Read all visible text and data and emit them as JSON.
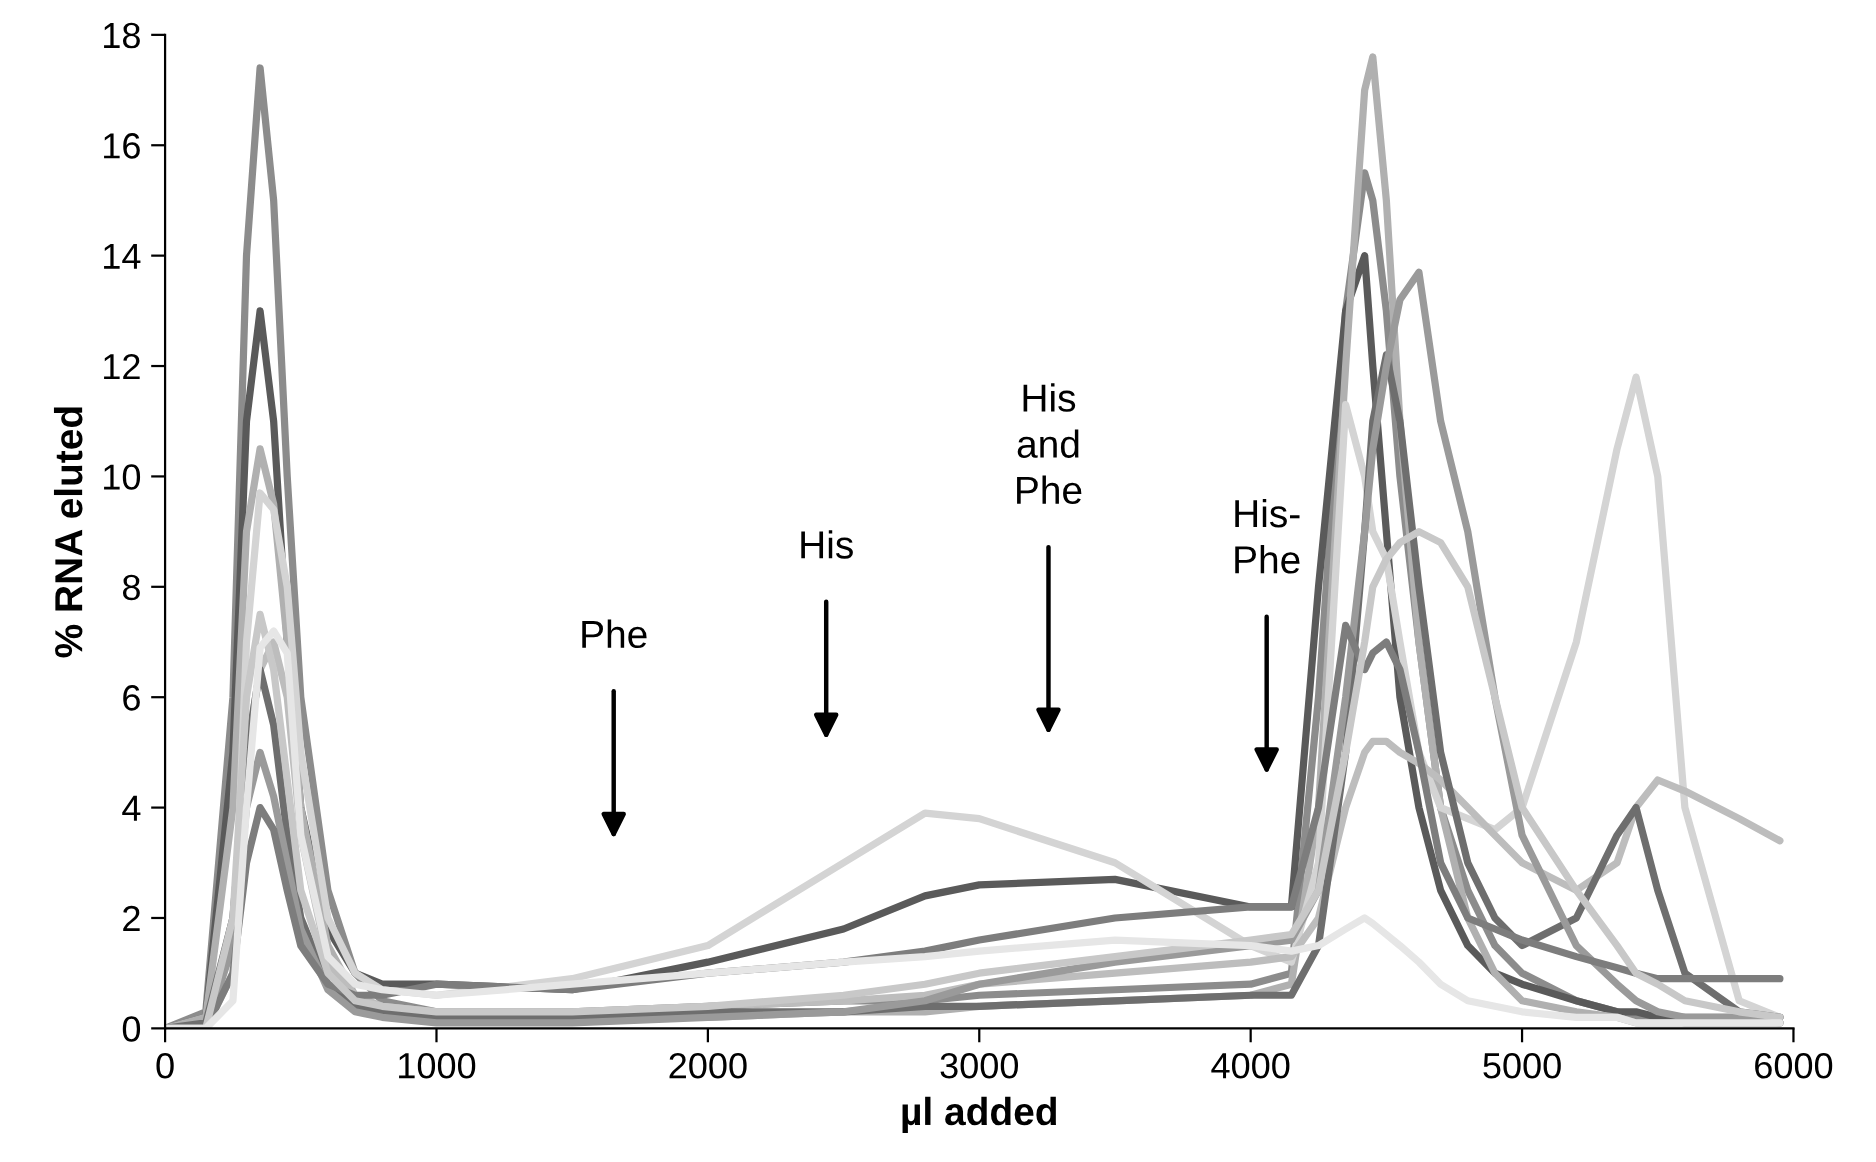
{
  "chart_data": {
    "type": "line",
    "xlabel": "µl added",
    "ylabel": "% RNA eluted",
    "xlim": [
      0,
      6000
    ],
    "ylim": [
      0,
      18
    ],
    "xticks": [
      0,
      1000,
      2000,
      3000,
      4000,
      5000,
      6000
    ],
    "yticks": [
      0,
      2,
      4,
      6,
      8,
      10,
      12,
      14,
      16,
      18
    ],
    "grid": false,
    "legend": false,
    "marker": "none",
    "line_style": "solid",
    "x": [
      0,
      150,
      250,
      300,
      350,
      400,
      450,
      500,
      600,
      700,
      800,
      1000,
      1500,
      2000,
      2500,
      2800,
      3000,
      3500,
      4000,
      4150,
      4250,
      4350,
      4420,
      4450,
      4500,
      4550,
      4620,
      4700,
      4800,
      4900,
      5000,
      5200,
      5350,
      5420,
      5500,
      5600,
      5800,
      5950
    ],
    "annotations": [
      "Phe",
      "His",
      "His\nand\nPhe",
      "His-\nPhe"
    ],
    "series": [
      {
        "color": "#8c8c8c",
        "values": [
          0,
          0.3,
          6,
          14,
          17.4,
          15,
          10,
          6,
          2.5,
          1,
          0.5,
          0.3,
          0.3,
          0.4,
          0.5,
          0.5,
          0.6,
          0.7,
          0.8,
          1,
          6,
          13,
          15.5,
          15,
          13,
          10,
          7,
          4,
          2.5,
          1.5,
          1,
          0.5,
          0.3,
          0.2,
          0.2,
          0.1,
          0.1,
          0.1
        ]
      },
      {
        "color": "#5a5a5a",
        "values": [
          0,
          0.2,
          5,
          11,
          13,
          11,
          7,
          4,
          1.8,
          1,
          0.8,
          0.8,
          0.7,
          1.2,
          1.8,
          2.4,
          2.6,
          2.7,
          2.2,
          2.2,
          8,
          13,
          14,
          12,
          9,
          6,
          4,
          2.5,
          1.5,
          1,
          0.8,
          0.5,
          0.3,
          0.3,
          0.2,
          0.2,
          0.2,
          0.2
        ]
      },
      {
        "color": "#b0b0b0",
        "values": [
          0,
          0.2,
          4,
          9,
          10.5,
          9.5,
          7,
          4,
          1.5,
          0.6,
          0.3,
          0.2,
          0.2,
          0.2,
          0.3,
          0.3,
          0.4,
          0.5,
          0.6,
          0.8,
          4,
          12,
          17,
          17.6,
          15,
          11,
          7,
          4,
          2,
          1,
          0.5,
          0.3,
          0.2,
          0.1,
          0.1,
          0.1,
          0.1,
          0.1
        ]
      },
      {
        "color": "#d4d4d4",
        "values": [
          0,
          0,
          1,
          7,
          9.7,
          9.4,
          8,
          5,
          2,
          1,
          0.7,
          0.6,
          0.9,
          1.5,
          3,
          3.9,
          3.8,
          3,
          1.5,
          1.2,
          3,
          11.3,
          10,
          9,
          8.5,
          7,
          5,
          4,
          3.8,
          3.6,
          4,
          7,
          10.5,
          11.8,
          10,
          4,
          0.5,
          0.2
        ]
      },
      {
        "color": "#bdbdbd",
        "values": [
          0,
          0,
          2,
          5,
          6.5,
          7,
          6,
          3.5,
          1.2,
          0.6,
          0.4,
          0.3,
          0.3,
          0.4,
          0.5,
          0.6,
          0.8,
          1,
          1.2,
          1.3,
          2,
          4,
          5,
          5.2,
          5.2,
          5,
          4.8,
          4.5,
          4,
          3.5,
          3,
          2.5,
          3,
          4,
          4.5,
          4.3,
          3.8,
          3.4
        ]
      },
      {
        "color": "#6e6e6e",
        "values": [
          0,
          0.1,
          2,
          5,
          6.5,
          5.5,
          3.5,
          2,
          0.8,
          0.4,
          0.3,
          0.2,
          0.2,
          0.3,
          0.3,
          0.4,
          0.4,
          0.5,
          0.6,
          0.6,
          1.5,
          5,
          9,
          11,
          12.2,
          11,
          8,
          5,
          3,
          2,
          1.5,
          2,
          3.5,
          4,
          2.5,
          1,
          0.3,
          0.2
        ]
      },
      {
        "color": "#9a9a9a",
        "values": [
          0,
          0,
          1.5,
          4,
          5,
          4.2,
          3,
          1.8,
          0.7,
          0.3,
          0.2,
          0.1,
          0.1,
          0.2,
          0.3,
          0.5,
          0.8,
          1.2,
          1.5,
          1.6,
          2.5,
          6,
          9,
          10.5,
          12,
          13.2,
          13.7,
          11,
          9,
          6,
          3.5,
          1.5,
          0.8,
          0.5,
          0.3,
          0.2,
          0.2,
          0.1
        ]
      },
      {
        "color": "#7d7d7d",
        "values": [
          0,
          0,
          1,
          3,
          4,
          3.6,
          2.5,
          1.5,
          0.8,
          0.6,
          0.6,
          0.8,
          0.7,
          1,
          1.2,
          1.4,
          1.6,
          2,
          2.2,
          2.2,
          4,
          7.3,
          6.5,
          6.8,
          7,
          6.5,
          5,
          3,
          2,
          1.8,
          1.6,
          1.3,
          1.1,
          1,
          0.9,
          0.9,
          0.9,
          0.9
        ]
      },
      {
        "color": "#c8c8c8",
        "values": [
          0,
          0,
          2,
          6,
          7.5,
          6.5,
          4.5,
          2.5,
          1,
          0.5,
          0.4,
          0.3,
          0.3,
          0.4,
          0.6,
          0.8,
          1,
          1.3,
          1.6,
          1.7,
          2.5,
          5,
          7,
          8,
          8.5,
          8.8,
          9,
          8.8,
          8,
          6,
          4,
          2.5,
          1.5,
          1,
          0.8,
          0.5,
          0.3,
          0.2
        ]
      },
      {
        "color": "#e6e6e6",
        "values": [
          0,
          0,
          0.5,
          4,
          6.9,
          7.2,
          6.8,
          3.5,
          1.3,
          0.8,
          0.7,
          0.6,
          0.8,
          1,
          1.2,
          1.3,
          1.4,
          1.6,
          1.5,
          1.4,
          1.5,
          1.8,
          2,
          1.9,
          1.7,
          1.5,
          1.2,
          0.8,
          0.5,
          0.4,
          0.3,
          0.2,
          0.2,
          0.1,
          0.1,
          0.1,
          0.1,
          0.1
        ]
      }
    ]
  }
}
